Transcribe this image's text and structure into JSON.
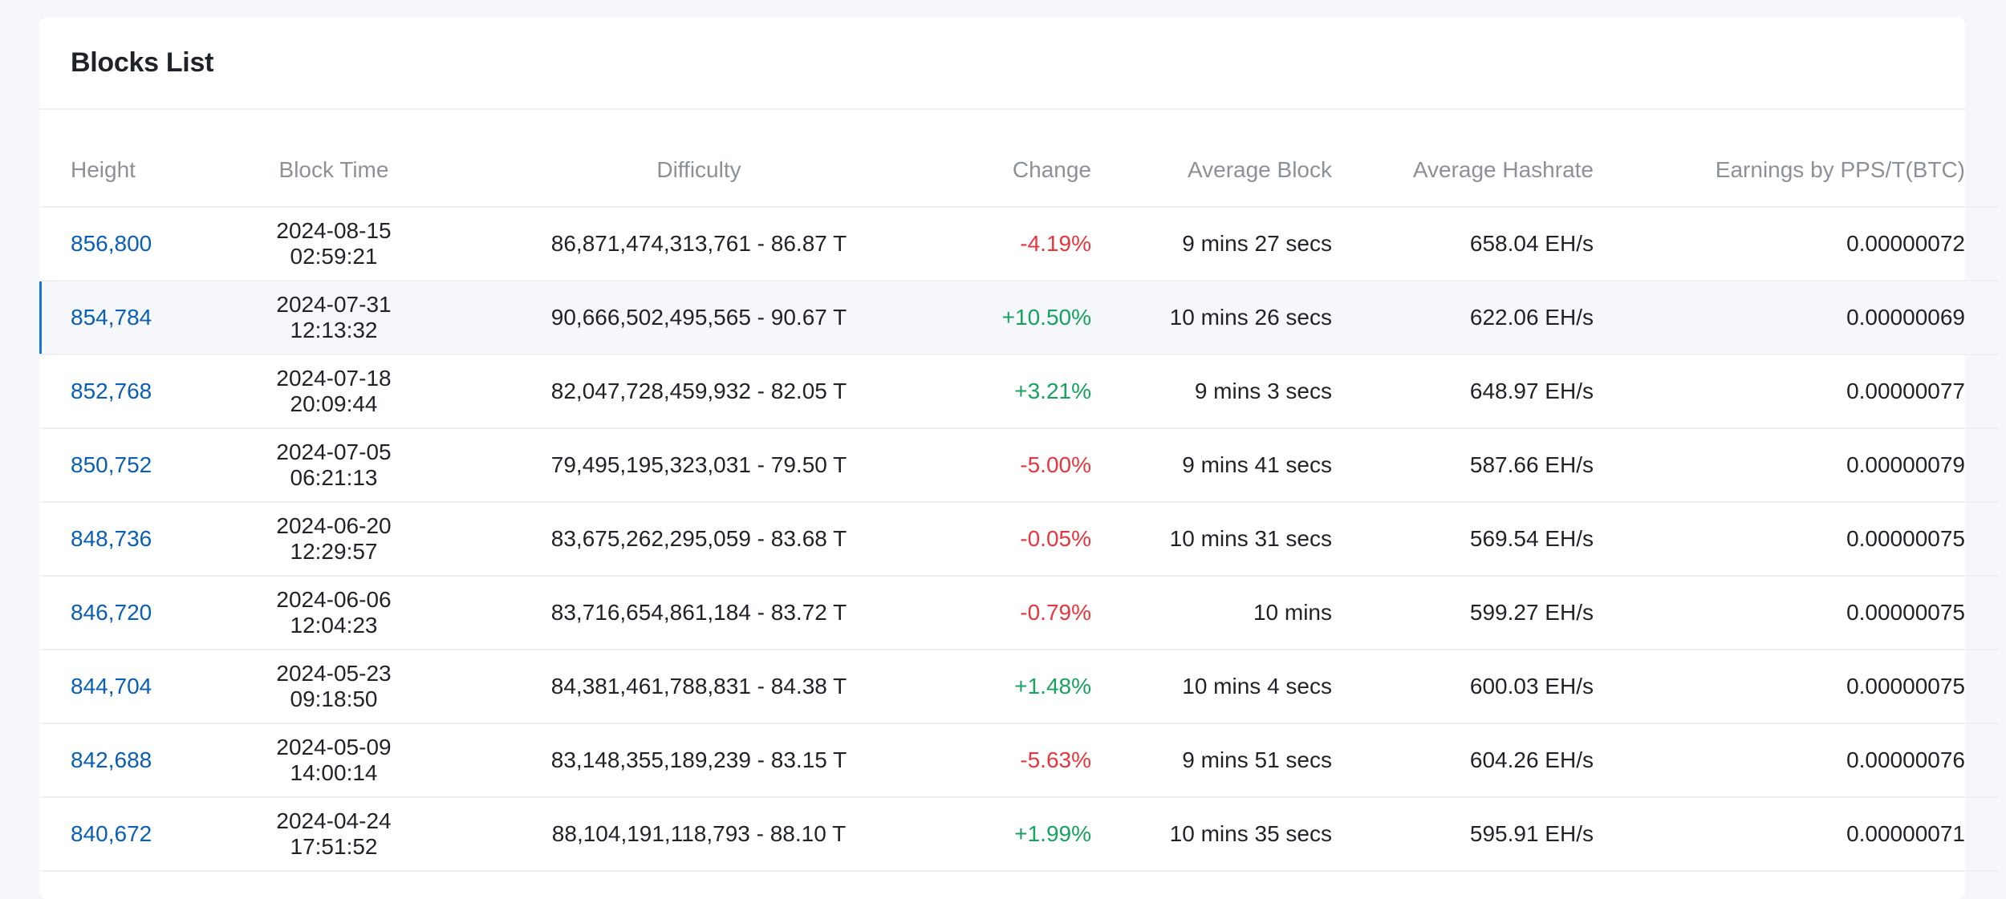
{
  "title": "Blocks List",
  "columns": [
    "Height",
    "Block Time",
    "Difficulty",
    "Change",
    "Average Block",
    "Average Hashrate",
    "Earnings by PPS/T(BTC)"
  ],
  "colors": {
    "positive": "#19a15f",
    "negative": "#e5373e",
    "link": "#0a5fb4",
    "selected_marker": "#1b72d8"
  },
  "rows": [
    {
      "height": "856,800",
      "time": "2024-08-15 02:59:21",
      "difficulty": "86,871,474,313,761 - 86.87 T",
      "change": "-4.19%",
      "avg_block": "9 mins 27 secs",
      "hashrate": "658.04 EH/s",
      "earnings": "0.00000072"
    },
    {
      "height": "854,784",
      "time": "2024-07-31 12:13:32",
      "difficulty": "90,666,502,495,565 - 90.67 T",
      "change": "+10.50%",
      "avg_block": "10 mins 26 secs",
      "hashrate": "622.06 EH/s",
      "earnings": "0.00000069",
      "selected": true
    },
    {
      "height": "852,768",
      "time": "2024-07-18 20:09:44",
      "difficulty": "82,047,728,459,932 - 82.05 T",
      "change": "+3.21%",
      "avg_block": "9 mins 3 secs",
      "hashrate": "648.97 EH/s",
      "earnings": "0.00000077"
    },
    {
      "height": "850,752",
      "time": "2024-07-05 06:21:13",
      "difficulty": "79,495,195,323,031 - 79.50 T",
      "change": "-5.00%",
      "avg_block": "9 mins 41 secs",
      "hashrate": "587.66 EH/s",
      "earnings": "0.00000079"
    },
    {
      "height": "848,736",
      "time": "2024-06-20 12:29:57",
      "difficulty": "83,675,262,295,059 - 83.68 T",
      "change": "-0.05%",
      "avg_block": "10 mins 31 secs",
      "hashrate": "569.54 EH/s",
      "earnings": "0.00000075"
    },
    {
      "height": "846,720",
      "time": "2024-06-06 12:04:23",
      "difficulty": "83,716,654,861,184 - 83.72 T",
      "change": "-0.79%",
      "avg_block": "10 mins",
      "hashrate": "599.27 EH/s",
      "earnings": "0.00000075"
    },
    {
      "height": "844,704",
      "time": "2024-05-23 09:18:50",
      "difficulty": "84,381,461,788,831 - 84.38 T",
      "change": "+1.48%",
      "avg_block": "10 mins 4 secs",
      "hashrate": "600.03 EH/s",
      "earnings": "0.00000075"
    },
    {
      "height": "842,688",
      "time": "2024-05-09 14:00:14",
      "difficulty": "83,148,355,189,239 - 83.15 T",
      "change": "-5.63%",
      "avg_block": "9 mins 51 secs",
      "hashrate": "604.26 EH/s",
      "earnings": "0.00000076"
    },
    {
      "height": "840,672",
      "time": "2024-04-24 17:51:52",
      "difficulty": "88,104,191,118,793 - 88.10 T",
      "change": "+1.99%",
      "avg_block": "10 mins 35 secs",
      "hashrate": "595.91 EH/s",
      "earnings": "0.00000071"
    }
  ]
}
